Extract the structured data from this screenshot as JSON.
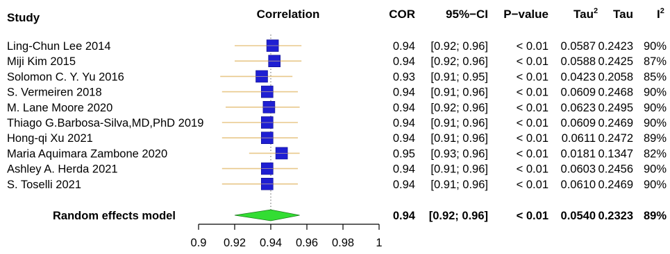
{
  "chart_data": {
    "type": "forest",
    "headers": {
      "study": "Study",
      "correlation": "Correlation",
      "cor": "COR",
      "ci": "95%−CI",
      "pvalue": "P−value",
      "tau2_base": "Tau",
      "tau2_sup": "2",
      "tau": "Tau",
      "i2_base": "I",
      "i2_sup": "2"
    },
    "studies": [
      {
        "name": "Ling-Chun Lee 2014",
        "cor": 0.94,
        "est": 0.941,
        "lower": 0.92,
        "upper": 0.957,
        "cor_label": "0.94",
        "ci_label": "[0.92; 0.96]",
        "p_label": "< 0.01",
        "tau2": "0.0587",
        "tau": "0.2423",
        "i2": "90%",
        "weight": 1.0
      },
      {
        "name": "Miji Kim 2015",
        "cor": 0.94,
        "est": 0.942,
        "lower": 0.92,
        "upper": 0.957,
        "cor_label": "0.94",
        "ci_label": "[0.92; 0.96]",
        "p_label": "< 0.01",
        "tau2": "0.0588",
        "tau": "0.2425",
        "i2": "87%",
        "weight": 1.0
      },
      {
        "name": "Solomon C. Y. Yu 2016",
        "cor": 0.93,
        "est": 0.935,
        "lower": 0.912,
        "upper": 0.952,
        "cor_label": "0.93",
        "ci_label": "[0.91; 0.95]",
        "p_label": "< 0.01",
        "tau2": "0.0423",
        "tau": "0.2058",
        "i2": "85%",
        "weight": 1.0
      },
      {
        "name": "S. Vermeiren 2018",
        "cor": 0.94,
        "est": 0.938,
        "lower": 0.913,
        "upper": 0.955,
        "cor_label": "0.94",
        "ci_label": "[0.91; 0.96]",
        "p_label": "< 0.01",
        "tau2": "0.0609",
        "tau": "0.2468",
        "i2": "90%",
        "weight": 1.0
      },
      {
        "name": "M. Lane Moore 2020",
        "cor": 0.94,
        "est": 0.939,
        "lower": 0.915,
        "upper": 0.956,
        "cor_label": "0.94",
        "ci_label": "[0.92; 0.96]",
        "p_label": "< 0.01",
        "tau2": "0.0623",
        "tau": "0.2495",
        "i2": "90%",
        "weight": 1.0
      },
      {
        "name": "Thiago G.Barbosa-Silva,MD,PhD 2019",
        "cor": 0.94,
        "est": 0.938,
        "lower": 0.913,
        "upper": 0.955,
        "cor_label": "0.94",
        "ci_label": "[0.91; 0.96]",
        "p_label": "< 0.01",
        "tau2": "0.0609",
        "tau": "0.2469",
        "i2": "90%",
        "weight": 1.0
      },
      {
        "name": "Hong-qi Xu 2021",
        "cor": 0.94,
        "est": 0.938,
        "lower": 0.913,
        "upper": 0.955,
        "cor_label": "0.94",
        "ci_label": "[0.91; 0.96]",
        "p_label": "< 0.01",
        "tau2": "0.0611",
        "tau": "0.2472",
        "i2": "89%",
        "weight": 1.0
      },
      {
        "name": "Maria Aquimara Zambone 2020",
        "cor": 0.95,
        "est": 0.946,
        "lower": 0.928,
        "upper": 0.956,
        "cor_label": "0.95",
        "ci_label": "[0.93; 0.96]",
        "p_label": "< 0.01",
        "tau2": "0.0181",
        "tau": "0.1347",
        "i2": "82%",
        "weight": 1.0
      },
      {
        "name": "Ashley A. Herda 2021",
        "cor": 0.94,
        "est": 0.938,
        "lower": 0.913,
        "upper": 0.955,
        "cor_label": "0.94",
        "ci_label": "[0.91; 0.96]",
        "p_label": "< 0.01",
        "tau2": "0.0603",
        "tau": "0.2456",
        "i2": "90%",
        "weight": 1.0
      },
      {
        "name": "S. Toselli 2021",
        "cor": 0.94,
        "est": 0.938,
        "lower": 0.913,
        "upper": 0.955,
        "cor_label": "0.94",
        "ci_label": "[0.91; 0.96]",
        "p_label": "< 0.01",
        "tau2": "0.0610",
        "tau": "0.2469",
        "i2": "90%",
        "weight": 1.0
      }
    ],
    "summary": {
      "name": "Random effects model",
      "est": 0.94,
      "lower": 0.92,
      "upper": 0.956,
      "cor_label": "0.94",
      "ci_label": "[0.92; 0.96]",
      "p_label": "< 0.01",
      "tau2": "0.0540",
      "tau": "0.2323",
      "i2": "89%"
    },
    "xaxis": {
      "ticks": [
        0.9,
        0.92,
        0.94,
        0.96,
        0.98,
        1
      ],
      "tick_labels": [
        "0.9",
        "0.92",
        "0.94",
        "0.96",
        "0.98",
        "1"
      ],
      "range": [
        0.9,
        1
      ]
    },
    "reference_line": 0.94,
    "colors": {
      "box": "#1f1fd2",
      "ci": "#e8c88a",
      "diamond": "#33dd33",
      "text": "#000000"
    }
  }
}
